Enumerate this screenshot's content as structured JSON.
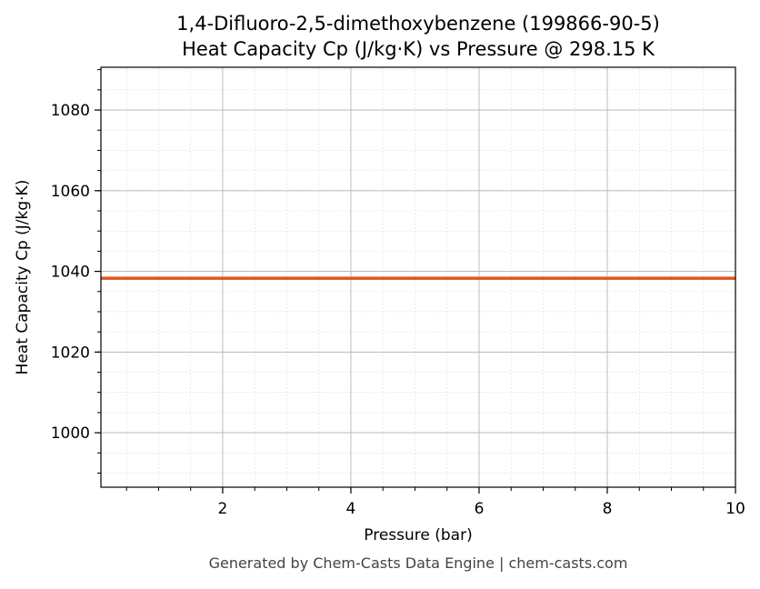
{
  "chart_data": {
    "type": "line",
    "title": "1,4-Difluoro-2,5-dimethoxybenzene (199866-90-5)",
    "subtitle": "Heat Capacity Cp (J/kg·K) vs Pressure @ 298.15 K",
    "xlabel": "Pressure (bar)",
    "ylabel": "Heat Capacity Cp (J/kg·K)",
    "xlim": [
      0.1,
      10
    ],
    "ylim": [
      986.5,
      1090.6
    ],
    "xticks": [
      2,
      4,
      6,
      8,
      10
    ],
    "yticks": [
      1000,
      1020,
      1040,
      1060,
      1080
    ],
    "grid": true,
    "series": [
      {
        "x": [
          0.1,
          10
        ],
        "y": [
          1038.3,
          1038.3
        ],
        "color": "#e0561f"
      }
    ]
  },
  "footer": "Generated by Chem-Casts Data Engine | chem-casts.com"
}
